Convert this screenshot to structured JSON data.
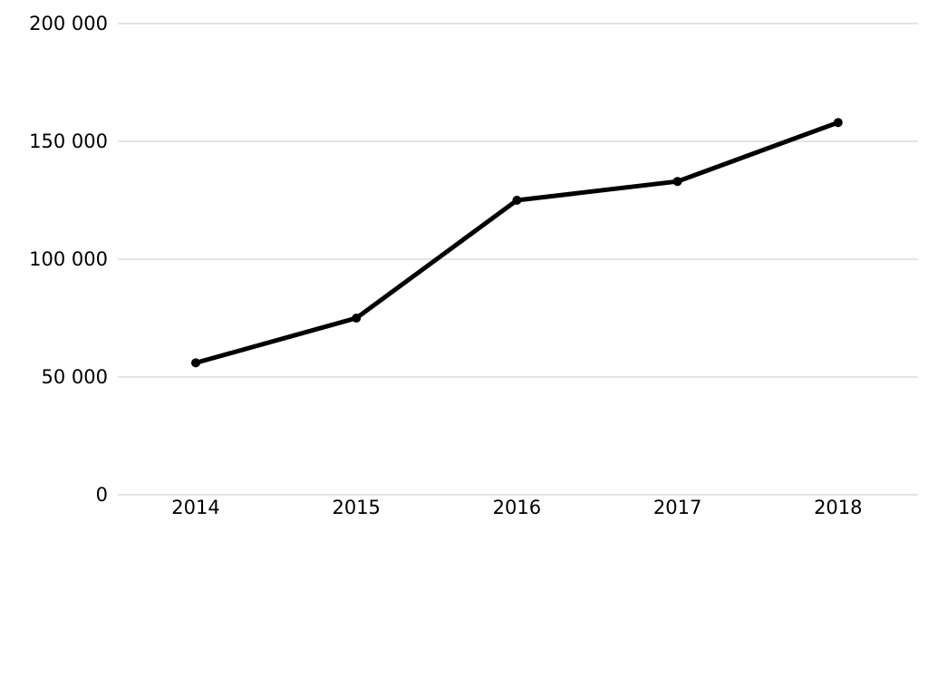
{
  "chart_data": {
    "type": "line",
    "title": "",
    "xlabel": "",
    "ylabel": "",
    "categories": [
      "2014",
      "2015",
      "2016",
      "2017",
      "2018"
    ],
    "series": [
      {
        "values": [
          56000,
          75000,
          125000,
          133000,
          158000
        ]
      }
    ],
    "ylim": [
      0,
      200000
    ],
    "y_ticks": [
      0,
      50000,
      100000,
      150000,
      200000
    ],
    "y_tick_labels": [
      "0",
      "50 000",
      "100 000",
      "150 000",
      "200 000"
    ],
    "grid": true,
    "legend": "none",
    "colors": {
      "line": "#000000",
      "grid": "#c8c8c8",
      "text": "#000000"
    }
  }
}
